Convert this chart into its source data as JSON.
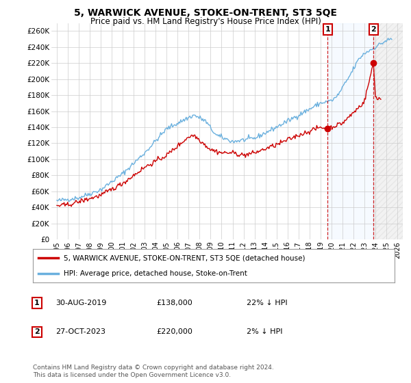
{
  "title": "5, WARWICK AVENUE, STOKE-ON-TRENT, ST3 5QE",
  "subtitle": "Price paid vs. HM Land Registry's House Price Index (HPI)",
  "ylabel_ticks": [
    "£0",
    "£20K",
    "£40K",
    "£60K",
    "£80K",
    "£100K",
    "£120K",
    "£140K",
    "£160K",
    "£180K",
    "£200K",
    "£220K",
    "£240K",
    "£260K"
  ],
  "ytick_values": [
    0,
    20000,
    40000,
    60000,
    80000,
    100000,
    120000,
    140000,
    160000,
    180000,
    200000,
    220000,
    240000,
    260000
  ],
  "ylim": [
    0,
    270000
  ],
  "xlim_start": 1994.5,
  "xlim_end": 2026.5,
  "xtick_years": [
    1995,
    1996,
    1997,
    1998,
    1999,
    2000,
    2001,
    2002,
    2003,
    2004,
    2005,
    2006,
    2007,
    2008,
    2009,
    2010,
    2011,
    2012,
    2013,
    2014,
    2015,
    2016,
    2017,
    2018,
    2019,
    2020,
    2021,
    2022,
    2023,
    2024,
    2025,
    2026
  ],
  "hpi_color": "#6ab0de",
  "price_color": "#cc0000",
  "marker1_date": 2019.66,
  "marker1_value": 138000,
  "marker1_label": "1",
  "marker2_date": 2023.83,
  "marker2_value": 220000,
  "marker2_label": "2",
  "shade_color": "#ddeeff",
  "hatch_color": "#cccccc",
  "legend_line1": "5, WARWICK AVENUE, STOKE-ON-TRENT, ST3 5QE (detached house)",
  "legend_line2": "HPI: Average price, detached house, Stoke-on-Trent",
  "table_row1": [
    "1",
    "30-AUG-2019",
    "£138,000",
    "22% ↓ HPI"
  ],
  "table_row2": [
    "2",
    "27-OCT-2023",
    "£220,000",
    "2% ↓ HPI"
  ],
  "footer": "Contains HM Land Registry data © Crown copyright and database right 2024.\nThis data is licensed under the Open Government Licence v3.0.",
  "background_color": "#ffffff",
  "grid_color": "#cccccc"
}
